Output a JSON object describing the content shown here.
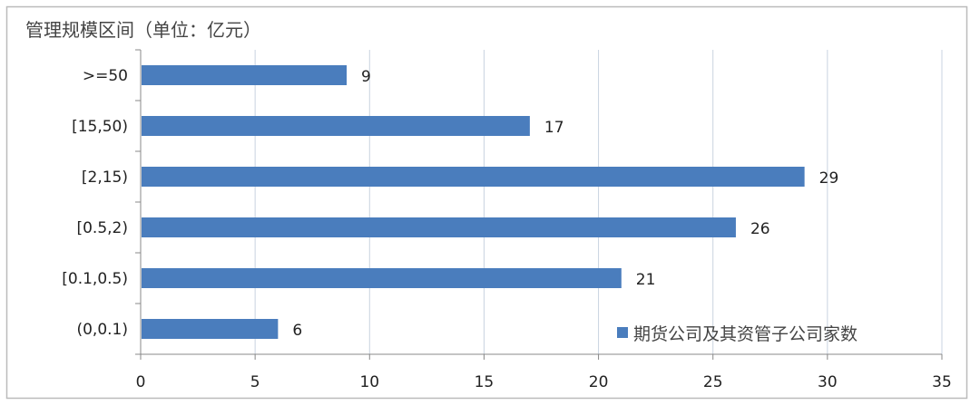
{
  "chart_data": {
    "type": "bar",
    "orientation": "horizontal",
    "title": "管理规模区间（单位：亿元）",
    "categories": [
      ">=50",
      "[15,50)",
      "[2,15)",
      "[0.5,2)",
      "[0.1,0.5)",
      "(0,0.1)"
    ],
    "series": [
      {
        "name": "期货公司及其资管子公司家数",
        "values": [
          9,
          17,
          29,
          26,
          21,
          6
        ]
      }
    ],
    "xlim": [
      0,
      35
    ],
    "xticks": [
      0,
      5,
      10,
      15,
      20,
      25,
      30,
      35
    ],
    "grid": true,
    "legend_position": "bottom-right",
    "data_labels": true,
    "colors": {
      "bar": "#4a7dbd",
      "grid": "#c9d3e0",
      "axis": "#888888"
    }
  }
}
